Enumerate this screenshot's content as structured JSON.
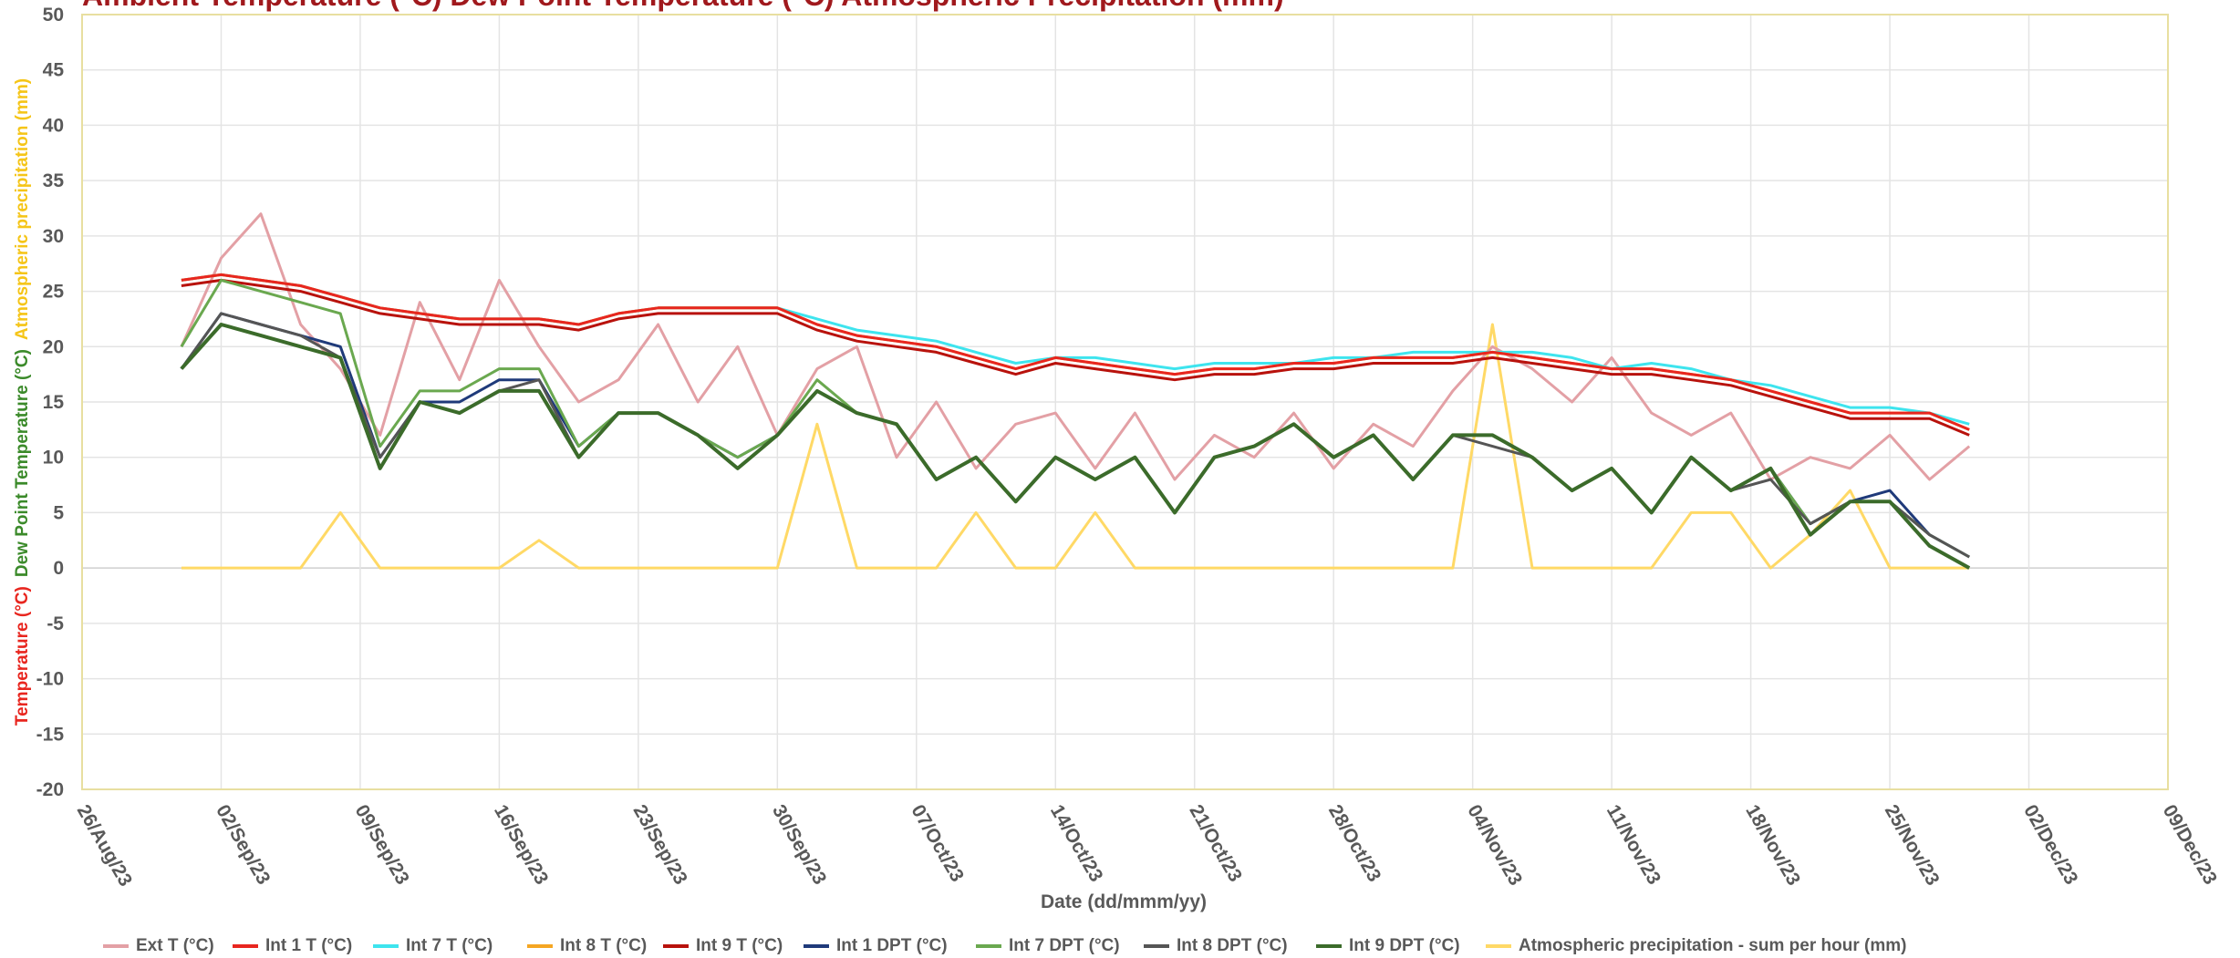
{
  "chart_data": {
    "type": "line",
    "title": "Ambient Temperature (°C) Dew Point Temperature (°C) Atmospheric Precipitation (mm)",
    "ylabel": [
      {
        "text": "Temperature (°C)",
        "color": "#e8261f"
      },
      {
        "text": "Dew Point Temperature (°C)",
        "color": "#3b8a2a"
      },
      {
        "text": "Atmospheric precipitation (mm)",
        "color": "#f5c518"
      }
    ],
    "xlabel": "Date (dd/mmm/yy)",
    "xlim": [
      "26/Aug/23",
      "09/Dec/23"
    ],
    "xticks": [
      "26/Aug/23",
      "02/Sep/23",
      "09/Sep/23",
      "16/Sep/23",
      "23/Sep/23",
      "30/Sep/23",
      "07/Oct/23",
      "14/Oct/23",
      "21/Oct/23",
      "28/Oct/23",
      "04/Nov/23",
      "11/Nov/23",
      "18/Nov/23",
      "25/Nov/23",
      "02/Dec/23",
      "09/Dec/23"
    ],
    "ylim": [
      -20,
      50
    ],
    "yticks": [
      -20,
      -15,
      -10,
      -5,
      0,
      5,
      10,
      15,
      20,
      25,
      30,
      35,
      40,
      45,
      50
    ],
    "grid": true,
    "legend": "bottom",
    "x": [
      "31/Aug/23",
      "02/Sep/23",
      "04/Sep/23",
      "06/Sep/23",
      "08/Sep/23",
      "10/Sep/23",
      "12/Sep/23",
      "14/Sep/23",
      "16/Sep/23",
      "18/Sep/23",
      "20/Sep/23",
      "22/Sep/23",
      "24/Sep/23",
      "26/Sep/23",
      "28/Sep/23",
      "30/Sep/23",
      "02/Oct/23",
      "04/Oct/23",
      "06/Oct/23",
      "08/Oct/23",
      "10/Oct/23",
      "12/Oct/23",
      "14/Oct/23",
      "16/Oct/23",
      "18/Oct/23",
      "20/Oct/23",
      "22/Oct/23",
      "24/Oct/23",
      "26/Oct/23",
      "28/Oct/23",
      "30/Oct/23",
      "01/Nov/23",
      "03/Nov/23",
      "05/Nov/23",
      "07/Nov/23",
      "09/Nov/23",
      "11/Nov/23",
      "13/Nov/23",
      "15/Nov/23",
      "17/Nov/23",
      "19/Nov/23",
      "21/Nov/23",
      "23/Nov/23",
      "25/Nov/23",
      "27/Nov/23",
      "29/Nov/23"
    ],
    "series": [
      {
        "name": "Ext T (°C)",
        "color": "#e3a0a5",
        "width": 3,
        "values": [
          20,
          28,
          32,
          22,
          18,
          12,
          24,
          17,
          26,
          20,
          15,
          17,
          22,
          15,
          20,
          12,
          18,
          20,
          10,
          15,
          9,
          13,
          14,
          9,
          14,
          8,
          12,
          10,
          14,
          9,
          13,
          11,
          16,
          20,
          18,
          15,
          19,
          14,
          12,
          14,
          8,
          10,
          9,
          12,
          8,
          11
        ]
      },
      {
        "name": "Int 1 T (°C)",
        "color": "#e8261f",
        "width": 3,
        "values": [
          26,
          26.5,
          26,
          25.5,
          24.5,
          23.5,
          23,
          22.5,
          22.5,
          22.5,
          22,
          23,
          23.5,
          23.5,
          23.5,
          23.5,
          22,
          21,
          20.5,
          20,
          19,
          18,
          19,
          18.5,
          18,
          17.5,
          18,
          18,
          18.5,
          18.5,
          19,
          19,
          19,
          19.5,
          19,
          18.5,
          18,
          18,
          17.5,
          17,
          16,
          15,
          14,
          14,
          14,
          12.5
        ]
      },
      {
        "name": "Int 7 T (°C)",
        "color": "#3ee4ee",
        "width": 3,
        "values": [
          26,
          26.5,
          26,
          25.5,
          24.5,
          23.5,
          23,
          22.5,
          22.5,
          22.5,
          22,
          23,
          23.5,
          23.5,
          23.5,
          23.5,
          22.5,
          21.5,
          21,
          20.5,
          19.5,
          18.5,
          19,
          19,
          18.5,
          18,
          18.5,
          18.5,
          18.5,
          19,
          19,
          19.5,
          19.5,
          19.5,
          19.5,
          19,
          18,
          18.5,
          18,
          17,
          16.5,
          15.5,
          14.5,
          14.5,
          14,
          13
        ]
      },
      {
        "name": "Int 8 T (°C)",
        "color": "#f5a623",
        "width": 3,
        "values": [
          26,
          26.5,
          26,
          25.5,
          24.5,
          23.5,
          23,
          22.5,
          22.5,
          22.5,
          22,
          23,
          23.5,
          23.5,
          23.5,
          23.5,
          22,
          21,
          20.5,
          20,
          19,
          18,
          19,
          18.5,
          18,
          17.5,
          18,
          18,
          18.5,
          18.5,
          19,
          19,
          19,
          19.5,
          19,
          18.5,
          18,
          18,
          17.5,
          17,
          16,
          15,
          14,
          14,
          14,
          12.5
        ]
      },
      {
        "name": "Int 9 T (°C)",
        "color": "#b8120c",
        "width": 3,
        "values": [
          25.5,
          26,
          25.5,
          25,
          24,
          23,
          22.5,
          22,
          22,
          22,
          21.5,
          22.5,
          23,
          23,
          23,
          23,
          21.5,
          20.5,
          20,
          19.5,
          18.5,
          17.5,
          18.5,
          18,
          17.5,
          17,
          17.5,
          17.5,
          18,
          18,
          18.5,
          18.5,
          18.5,
          19,
          18.5,
          18,
          17.5,
          17.5,
          17,
          16.5,
          15.5,
          14.5,
          13.5,
          13.5,
          13.5,
          12
        ]
      },
      {
        "name": "Int 1 DPT (°C)",
        "color": "#1f3a7a",
        "width": 3,
        "values": [
          18,
          23,
          22,
          21,
          20,
          10,
          15,
          15,
          17,
          17,
          11,
          14,
          14,
          12,
          10,
          12,
          16,
          14,
          13,
          8,
          10,
          6,
          10,
          8,
          10,
          5,
          10,
          11,
          13,
          10,
          12,
          8,
          12,
          12,
          10,
          7,
          9,
          5,
          10,
          7,
          9,
          4,
          6,
          7,
          3,
          1
        ]
      },
      {
        "name": "Int 7 DPT (°C)",
        "color": "#6aa84f",
        "width": 3,
        "values": [
          20,
          26,
          25,
          24,
          23,
          11,
          16,
          16,
          18,
          18,
          11,
          14,
          14,
          12,
          10,
          12,
          17,
          14,
          13,
          8,
          10,
          6,
          10,
          8,
          10,
          5,
          10,
          11,
          13,
          10,
          12,
          8,
          12,
          12,
          10,
          7,
          9,
          5,
          10,
          7,
          9,
          4,
          6,
          6,
          3,
          1
        ]
      },
      {
        "name": "Int 8 DPT (°C)",
        "color": "#555555",
        "width": 3,
        "values": [
          18,
          23,
          22,
          21,
          19,
          10,
          15,
          14,
          16,
          17,
          10,
          14,
          14,
          12,
          9,
          12,
          16,
          14,
          13,
          8,
          10,
          6,
          10,
          8,
          10,
          5,
          10,
          11,
          13,
          10,
          12,
          8,
          12,
          11,
          10,
          7,
          9,
          5,
          10,
          7,
          8,
          4,
          6,
          6,
          3,
          1
        ]
      },
      {
        "name": "Int 9 DPT (°C)",
        "color": "#3b6b2a",
        "width": 4,
        "values": [
          18,
          22,
          21,
          20,
          19,
          9,
          15,
          14,
          16,
          16,
          10,
          14,
          14,
          12,
          9,
          12,
          16,
          14,
          13,
          8,
          10,
          6,
          10,
          8,
          10,
          5,
          10,
          11,
          13,
          10,
          12,
          8,
          12,
          12,
          10,
          7,
          9,
          5,
          10,
          7,
          9,
          3,
          6,
          6,
          2,
          0
        ]
      },
      {
        "name": "Atmospheric precipitation - sum per hour (mm)",
        "color": "#ffd966",
        "width": 3,
        "values": [
          0,
          0,
          0,
          0,
          5,
          0,
          0,
          0,
          0,
          2.5,
          0,
          0,
          0,
          0,
          0,
          0,
          13,
          0,
          0,
          0,
          5,
          0,
          0,
          5,
          0,
          0,
          0,
          0,
          0,
          0,
          0,
          0,
          0,
          22,
          0,
          0,
          0,
          0,
          5,
          5,
          0,
          3,
          7,
          0,
          0,
          0
        ]
      }
    ]
  }
}
